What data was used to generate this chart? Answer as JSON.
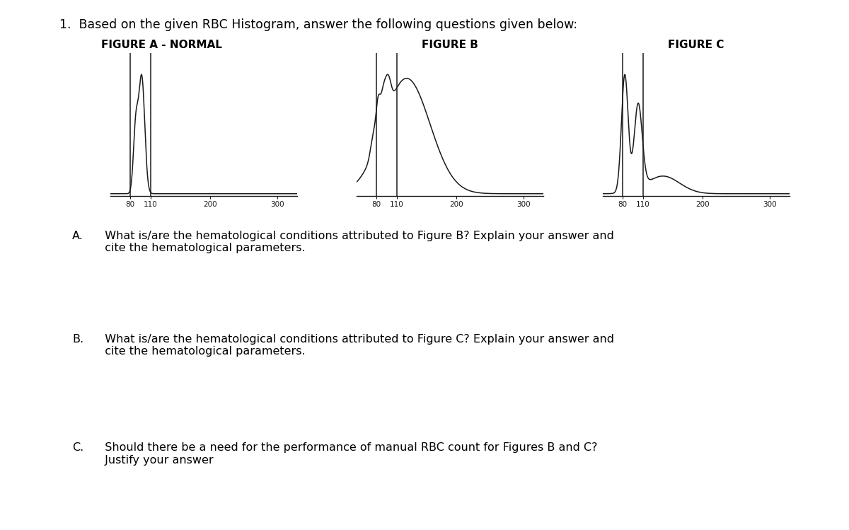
{
  "title_line": "1.  Based on the given RBC Histogram, answer the following questions given below:",
  "fig_titles": [
    "FIGURE A - NORMAL",
    "FIGURE B",
    "FIGURE C"
  ],
  "background_color": "#ffffff",
  "line_color": "#1a1a1a",
  "title_fontsize": 12.5,
  "fig_title_fontsize": 11,
  "question_fontsize": 11.5,
  "question_A_label": "A.",
  "question_A_text": "  What is/are the hematological conditions attributed to Figure B? Explain your answer and\n  cite the hematological parameters.",
  "question_B_label": "B.",
  "question_B_text": "  What is/are the hematological conditions attributed to Figure C? Explain your answer and\n  cite the hematological parameters.",
  "question_C_label": "C.",
  "question_C_text": "  Should there be a need for the performance of manual RBC count for Figures B and C?\n  Justify your answer"
}
